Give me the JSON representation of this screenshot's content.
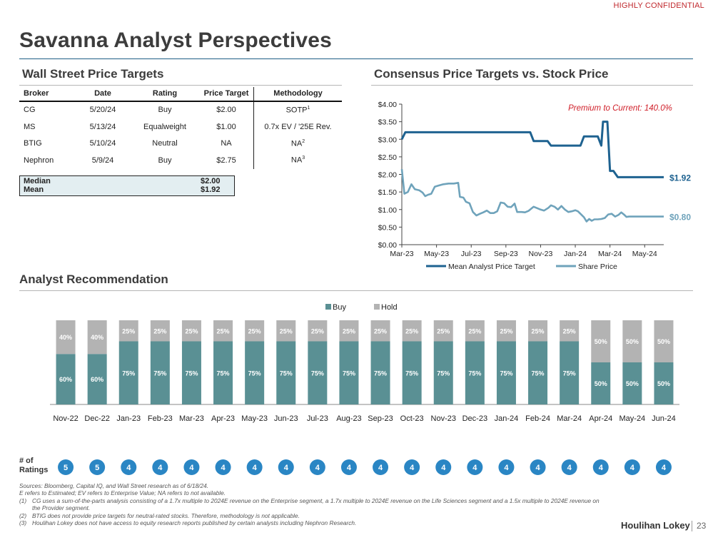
{
  "header": {
    "confidential": "HIGHLY CONFIDENTIAL",
    "title": "Savanna Analyst Perspectives"
  },
  "sections": {
    "price_targets": "Wall Street Price Targets",
    "consensus": "Consensus Price Targets vs. Stock Price",
    "recommendation": "Analyst Recommendation"
  },
  "table": {
    "headers": [
      "Broker",
      "Date",
      "Rating",
      "Price Target",
      "Methodology"
    ],
    "rows": [
      {
        "broker": "CG",
        "date": "5/20/24",
        "rating": "Buy",
        "target": "$2.00",
        "method": "SOTP",
        "sup": "1"
      },
      {
        "broker": "MS",
        "date": "5/13/24",
        "rating": "Equalweight",
        "target": "$1.00",
        "method": "0.7x EV / '25E Rev.",
        "sup": ""
      },
      {
        "broker": "BTIG",
        "date": "5/10/24",
        "rating": "Neutral",
        "target": "NA",
        "method": "NA",
        "sup": "2"
      },
      {
        "broker": "Nephron",
        "date": "5/9/24",
        "rating": "Buy",
        "target": "$2.75",
        "method": "NA",
        "sup": "3"
      }
    ],
    "summary": [
      {
        "label": "Median",
        "value": "$2.00"
      },
      {
        "label": "Mean",
        "value": "$1.92"
      }
    ]
  },
  "ratings_label": [
    "# of",
    "Ratings"
  ],
  "chart_data": [
    {
      "type": "line",
      "title": "Consensus Price Targets vs. Stock Price",
      "annotation": "Premium to Current: 140.0%",
      "ylim": [
        0,
        4
      ],
      "yticks": [
        "$0.00",
        "$0.50",
        "$1.00",
        "$1.50",
        "$2.00",
        "$2.50",
        "$3.00",
        "$3.50",
        "$4.00"
      ],
      "xlim_months": [
        0,
        15.1
      ],
      "xticks": [
        {
          "label": "Mar-23",
          "m": 0
        },
        {
          "label": "May-23",
          "m": 2
        },
        {
          "label": "Jul-23",
          "m": 4
        },
        {
          "label": "Sep-23",
          "m": 6
        },
        {
          "label": "Nov-23",
          "m": 8
        },
        {
          "label": "Jan-24",
          "m": 10
        },
        {
          "label": "Mar-24",
          "m": 12
        },
        {
          "label": "May-24",
          "m": 14
        }
      ],
      "series": [
        {
          "name": "Mean Analyst Price Target",
          "color": "#1e6290",
          "end_label": "$1.92",
          "points": [
            [
              0,
              3.0
            ],
            [
              0.2,
              3.2
            ],
            [
              1.5,
              3.2
            ],
            [
              3,
              3.2
            ],
            [
              5,
              3.2
            ],
            [
              7.4,
              3.2
            ],
            [
              7.6,
              2.95
            ],
            [
              8.4,
              2.95
            ],
            [
              8.6,
              2.82
            ],
            [
              10.3,
              2.82
            ],
            [
              10.5,
              3.08
            ],
            [
              11.3,
              3.08
            ],
            [
              11.5,
              2.82
            ],
            [
              11.6,
              3.5
            ],
            [
              11.85,
              3.5
            ],
            [
              12.0,
              2.1
            ],
            [
              12.2,
              2.1
            ],
            [
              12.45,
              1.92
            ],
            [
              15.1,
              1.92
            ]
          ]
        },
        {
          "name": "Share Price",
          "color": "#6fa3bb",
          "end_label": "$0.80",
          "points": [
            [
              0,
              2.15
            ],
            [
              0.15,
              1.45
            ],
            [
              0.35,
              1.5
            ],
            [
              0.55,
              1.72
            ],
            [
              0.75,
              1.58
            ],
            [
              1.0,
              1.55
            ],
            [
              1.2,
              1.48
            ],
            [
              1.35,
              1.38
            ],
            [
              1.5,
              1.42
            ],
            [
              1.7,
              1.45
            ],
            [
              1.9,
              1.65
            ],
            [
              2.1,
              1.68
            ],
            [
              2.4,
              1.72
            ],
            [
              2.7,
              1.74
            ],
            [
              3.0,
              1.74
            ],
            [
              3.25,
              1.76
            ],
            [
              3.35,
              1.36
            ],
            [
              3.55,
              1.34
            ],
            [
              3.7,
              1.22
            ],
            [
              3.9,
              1.18
            ],
            [
              4.1,
              0.93
            ],
            [
              4.3,
              0.83
            ],
            [
              4.5,
              0.88
            ],
            [
              4.7,
              0.92
            ],
            [
              4.9,
              0.97
            ],
            [
              5.1,
              0.9
            ],
            [
              5.3,
              0.9
            ],
            [
              5.5,
              0.95
            ],
            [
              5.7,
              1.2
            ],
            [
              5.9,
              1.18
            ],
            [
              6.1,
              1.08
            ],
            [
              6.3,
              1.07
            ],
            [
              6.5,
              1.17
            ],
            [
              6.65,
              0.93
            ],
            [
              6.9,
              0.93
            ],
            [
              7.1,
              0.92
            ],
            [
              7.3,
              0.96
            ],
            [
              7.6,
              1.08
            ],
            [
              7.8,
              1.04
            ],
            [
              8.0,
              1.0
            ],
            [
              8.2,
              0.97
            ],
            [
              8.45,
              1.05
            ],
            [
              8.6,
              1.12
            ],
            [
              8.8,
              1.08
            ],
            [
              9.0,
              1.0
            ],
            [
              9.2,
              1.1
            ],
            [
              9.4,
              1.0
            ],
            [
              9.6,
              0.93
            ],
            [
              9.8,
              0.95
            ],
            [
              10.0,
              0.98
            ],
            [
              10.15,
              0.95
            ],
            [
              10.3,
              0.88
            ],
            [
              10.5,
              0.78
            ],
            [
              10.65,
              0.66
            ],
            [
              10.8,
              0.73
            ],
            [
              10.95,
              0.68
            ],
            [
              11.1,
              0.72
            ],
            [
              11.3,
              0.72
            ],
            [
              11.5,
              0.73
            ],
            [
              11.7,
              0.76
            ],
            [
              11.9,
              0.86
            ],
            [
              12.1,
              0.88
            ],
            [
              12.3,
              0.8
            ],
            [
              12.5,
              0.85
            ],
            [
              12.65,
              0.92
            ],
            [
              12.8,
              0.86
            ],
            [
              12.95,
              0.79
            ],
            [
              13.1,
              0.8
            ],
            [
              15.1,
              0.8
            ]
          ]
        }
      ],
      "legend": [
        "Mean Analyst Price Target",
        "Share Price"
      ],
      "legend_position": "bottom"
    },
    {
      "type": "bar",
      "stacked": true,
      "title": "Analyst Recommendation",
      "legend_position": "top",
      "categories": [
        "Nov-22",
        "Dec-22",
        "Jan-23",
        "Feb-23",
        "Mar-23",
        "Apr-23",
        "May-23",
        "Jun-23",
        "Jul-23",
        "Aug-23",
        "Sep-23",
        "Oct-23",
        "Nov-23",
        "Dec-23",
        "Jan-24",
        "Feb-24",
        "Mar-24",
        "Apr-24",
        "May-24",
        "Jun-24"
      ],
      "series": [
        {
          "name": "Buy",
          "color": "#5a9094",
          "values": [
            60,
            60,
            75,
            75,
            75,
            75,
            75,
            75,
            75,
            75,
            75,
            75,
            75,
            75,
            75,
            75,
            75,
            50,
            50,
            50
          ]
        },
        {
          "name": "Hold",
          "color": "#b3b3b3",
          "values": [
            40,
            40,
            25,
            25,
            25,
            25,
            25,
            25,
            25,
            25,
            25,
            25,
            25,
            25,
            25,
            25,
            25,
            50,
            50,
            50
          ]
        }
      ],
      "ratings": [
        5,
        5,
        4,
        4,
        4,
        4,
        4,
        4,
        4,
        4,
        4,
        4,
        4,
        4,
        4,
        4,
        4,
        4,
        4,
        4
      ],
      "rating_color": "#2a86c4"
    }
  ],
  "footnotes": {
    "lines": [
      {
        "n": "",
        "text": "Sources: Bloomberg, Capital IQ, and Wall Street research as of 6/18/24."
      },
      {
        "n": "",
        "text": "E refers to Estimated; EV refers to Enterprise Value; NA refers to not available."
      },
      {
        "n": "(1)",
        "text": "CG uses a sum-of-the-parts analysis consisting of a 1.7x multiple to 2024E revenue on the Enterprise segment, a 1.7x multiple to 2024E revenue on the Life Sciences segment and a 1.5x multiple to 2024E revenue on the Provider segment."
      },
      {
        "n": "(2)",
        "text": "BTIG does not provide price targets for neutral-rated stocks. Therefore, methodology is not applicable."
      },
      {
        "n": "(3)",
        "text": "Houlihan Lokey does not have access to equity research reports published by certain analysts including Nephron Research."
      }
    ]
  },
  "footer": {
    "logo": "Houlihan Lokey",
    "page": "23"
  }
}
